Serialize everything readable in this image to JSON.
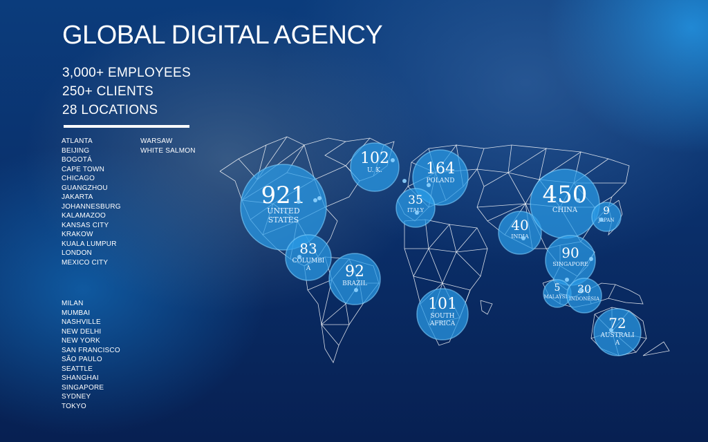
{
  "title": "GLOBAL DIGITAL AGENCY",
  "stats": [
    "3,000+ EMPLOYEES",
    "250+ CLIENTS",
    "28 LOCATIONS"
  ],
  "cities_col1": [
    "ATLANTA",
    "BEIJING",
    "BOGOTÁ",
    "CAPE TOWN",
    "CHICAGO",
    "GUANGZHOU",
    "JAKARTA",
    "JOHANNESBURG",
    "KALAMAZOO",
    "KANSAS CITY",
    "KRAKOW",
    "KUALA LUMPUR",
    "LONDON",
    "MEXICO CITY"
  ],
  "cities_col2": [
    "MILAN",
    "MUMBAI",
    "NASHVILLE",
    "NEW DELHI",
    "NEW YORK",
    "SAN FRANCISCO",
    "SÃO PAULO",
    "SEATTLE",
    "SHANGHAI",
    "SINGAPORE",
    "SYDNEY",
    "TOKYO"
  ],
  "cities_col3": [
    "WARSAW",
    "WHITE SALMON"
  ],
  "regions": [
    {
      "count": "921",
      "lines": [
        "UNITED",
        "STATES"
      ]
    },
    {
      "count": "102",
      "lines": [
        "U. K."
      ]
    },
    {
      "count": "164",
      "lines": [
        "POLAND"
      ]
    },
    {
      "count": "35",
      "lines": [
        "ITALY"
      ]
    },
    {
      "count": "83",
      "lines": [
        "COLUMBI",
        "A"
      ]
    },
    {
      "count": "92",
      "lines": [
        "BRAZIL"
      ]
    },
    {
      "count": "101",
      "lines": [
        "SOUTH",
        "AFRICA"
      ]
    },
    {
      "count": "40",
      "lines": [
        "INDIA"
      ]
    },
    {
      "count": "450",
      "lines": [
        "CHINA"
      ]
    },
    {
      "count": "9",
      "lines": [
        "JAPAN"
      ]
    },
    {
      "count": "90",
      "lines": [
        "SINGAPORE"
      ]
    },
    {
      "count": "5",
      "lines": [
        "MALAYSIA"
      ]
    },
    {
      "count": "30",
      "lines": [
        "INDONESIA"
      ]
    },
    {
      "count": "72",
      "lines": [
        "AUSTRALI",
        "A"
      ]
    }
  ],
  "colors": {
    "bubble": "#2a9be8",
    "bubble_edge": "#7fd0ff",
    "mesh": "#ffffff"
  }
}
